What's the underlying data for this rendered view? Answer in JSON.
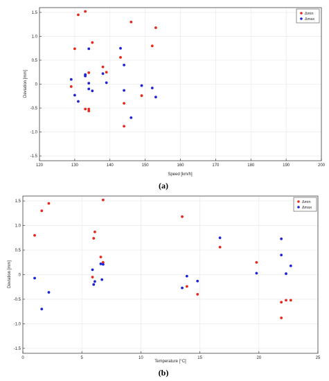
{
  "chart_data": [
    {
      "type": "scatter",
      "panel_label": "(a)",
      "xlabel": "Speed [km/h]",
      "ylabel": "Deviation [mm]",
      "xlim": [
        120,
        200
      ],
      "ylim": [
        -1.6,
        1.6
      ],
      "xticks": [
        "120",
        "130",
        "140",
        "150",
        "160",
        "170",
        "180",
        "190",
        "200"
      ],
      "yticks": [
        "1.5",
        "1.0",
        "0.5",
        "0",
        "-0.5",
        "-1.0",
        "-1.5"
      ],
      "grid": true,
      "legend_position": "top-right",
      "series": [
        {
          "name": "Δmin",
          "color": "#e8271b",
          "points": [
            [
              131,
              1.45
            ],
            [
              133,
              1.52
            ],
            [
              130,
              0.74
            ],
            [
              135,
              0.87
            ],
            [
              134,
              0.24
            ],
            [
              133,
              0.18
            ],
            [
              129,
              -0.05
            ],
            [
              133,
              -0.52
            ],
            [
              134,
              -0.52
            ],
            [
              134,
              -0.56
            ],
            [
              138,
              0.36
            ],
            [
              139,
              0.25
            ],
            [
              143,
              0.56
            ],
            [
              146,
              1.3
            ],
            [
              144,
              -0.4
            ],
            [
              144,
              -0.88
            ],
            [
              149,
              -0.24
            ],
            [
              152,
              0.8
            ],
            [
              153,
              1.18
            ]
          ]
        },
        {
          "name": "Δmax",
          "color": "#1d24d8",
          "points": [
            [
              129,
              0.1
            ],
            [
              130,
              -0.23
            ],
            [
              131,
              -0.36
            ],
            [
              133,
              0.2
            ],
            [
              133,
              0.17
            ],
            [
              134,
              0.74
            ],
            [
              134,
              0.02
            ],
            [
              134,
              -0.1
            ],
            [
              135,
              -0.14
            ],
            [
              138,
              0.22
            ],
            [
              139,
              0.03
            ],
            [
              143,
              0.75
            ],
            [
              144,
              0.4
            ],
            [
              144,
              -0.13
            ],
            [
              146,
              -0.7
            ],
            [
              149,
              -0.03
            ],
            [
              152,
              -0.08
            ],
            [
              153,
              -0.27
            ]
          ]
        }
      ]
    },
    {
      "type": "scatter",
      "panel_label": "(b)",
      "xlabel": "Temperature [°C]",
      "ylabel": "Deviation [mm]",
      "xlim": [
        0,
        25
      ],
      "ylim": [
        -1.6,
        1.6
      ],
      "xticks": [
        "0",
        "5",
        "10",
        "15",
        "20",
        "25"
      ],
      "yticks": [
        "1.5",
        "1.0",
        "0.5",
        "0",
        "-0.5",
        "-1.0",
        "-1.5"
      ],
      "grid": true,
      "legend_position": "top-right",
      "series": [
        {
          "name": "Δmin",
          "color": "#e8271b",
          "points": [
            [
              1.0,
              0.8
            ],
            [
              1.6,
              1.3
            ],
            [
              2.2,
              1.45
            ],
            [
              6.1,
              0.87
            ],
            [
              6.0,
              0.74
            ],
            [
              5.9,
              -0.05
            ],
            [
              6.6,
              0.36
            ],
            [
              6.8,
              0.25
            ],
            [
              6.8,
              1.52
            ],
            [
              13.5,
              1.18
            ],
            [
              13.9,
              -0.24
            ],
            [
              14.8,
              -0.4
            ],
            [
              16.7,
              0.56
            ],
            [
              19.8,
              0.25
            ],
            [
              21.9,
              -0.56
            ],
            [
              21.9,
              -0.88
            ],
            [
              22.3,
              -0.52
            ],
            [
              22.7,
              -0.52
            ]
          ]
        },
        {
          "name": "Δmax",
          "color": "#1d24d8",
          "points": [
            [
              1.0,
              -0.07
            ],
            [
              1.6,
              -0.7
            ],
            [
              2.2,
              -0.36
            ],
            [
              5.9,
              0.1
            ],
            [
              6.0,
              -0.2
            ],
            [
              6.1,
              -0.14
            ],
            [
              6.6,
              0.22
            ],
            [
              6.7,
              -0.1
            ],
            [
              6.8,
              0.21
            ],
            [
              13.5,
              -0.27
            ],
            [
              13.9,
              -0.03
            ],
            [
              14.8,
              -0.13
            ],
            [
              16.7,
              0.75
            ],
            [
              19.8,
              0.03
            ],
            [
              21.9,
              0.4
            ],
            [
              21.9,
              0.73
            ],
            [
              22.3,
              0.02
            ],
            [
              22.7,
              0.18
            ]
          ]
        }
      ]
    }
  ]
}
